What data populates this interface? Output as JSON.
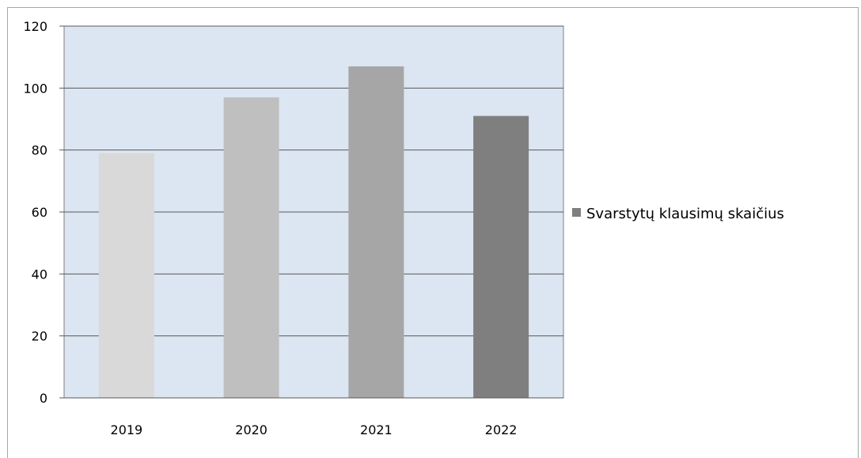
{
  "chart_data": {
    "type": "bar",
    "categories": [
      "2019",
      "2020",
      "2021",
      "2022"
    ],
    "series": [
      {
        "name": "Svarstytų klausimų skaičius",
        "values": [
          79,
          97,
          107,
          91
        ],
        "colors": [
          "#d9d9d9",
          "#bfbfbf",
          "#a6a6a6",
          "#7f7f7f"
        ]
      }
    ],
    "ylim": [
      0,
      120
    ],
    "yticks": [
      0,
      20,
      40,
      60,
      80,
      100,
      120
    ],
    "grid": true,
    "plot_background": "#dce6f2",
    "legend_position": "right",
    "legend_color": "#7f7f7f"
  }
}
